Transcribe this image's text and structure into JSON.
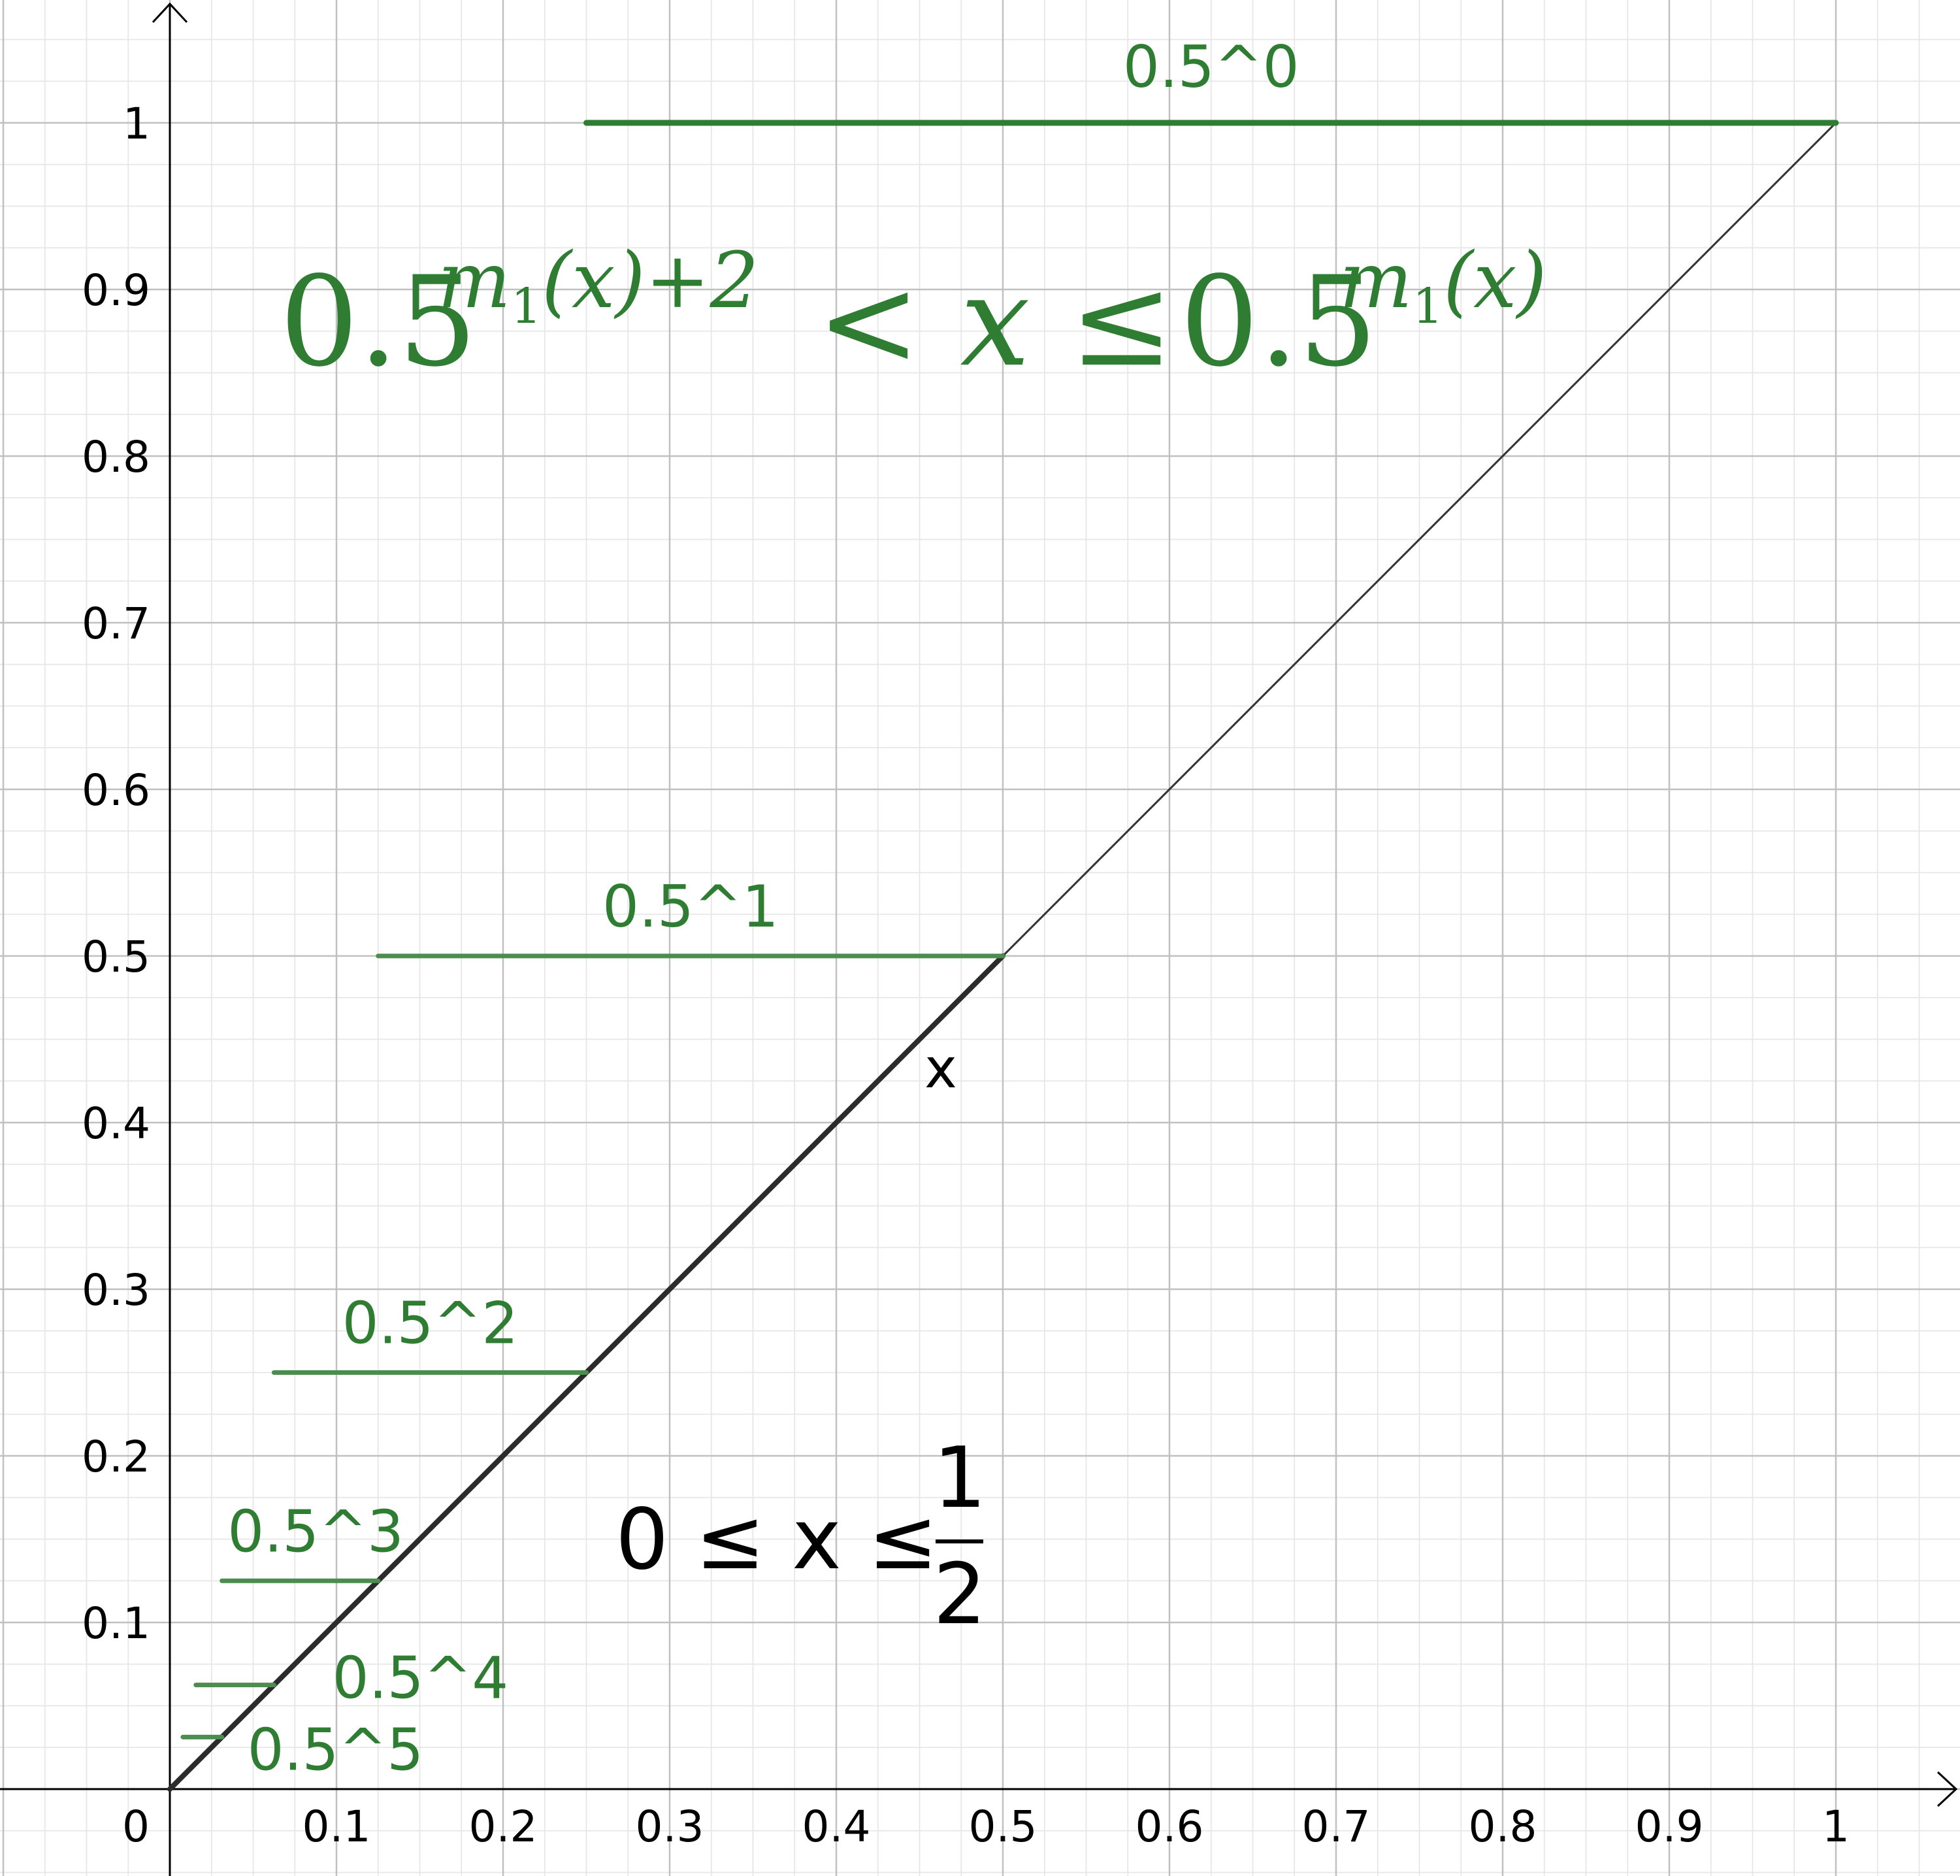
{
  "chart_data": {
    "type": "line",
    "title": "",
    "xlabel": "",
    "ylabel": "",
    "xlim": [
      -0.1,
      1.08
    ],
    "ylim": [
      -0.05,
      1.07
    ],
    "grid": true,
    "minor_grid": true,
    "x_ticks": [
      "0.1",
      "0.2",
      "0.3",
      "0.4",
      "0.5",
      "0.6",
      "0.7",
      "0.8",
      "0.9",
      "1"
    ],
    "y_ticks": [
      "0.1",
      "0.2",
      "0.3",
      "0.4",
      "0.5",
      "0.6",
      "0.7",
      "0.8",
      "0.9",
      "1"
    ],
    "origin_label": "0",
    "series": [
      {
        "points": [
          [
            0,
            0
          ],
          [
            1,
            1
          ]
        ],
        "color": "#333333"
      },
      {
        "name": "x",
        "points": [
          [
            0,
            0
          ],
          [
            0.5,
            0.5
          ]
        ],
        "color": "#2b2b2b"
      }
    ],
    "levels": [
      {
        "label": "0.5^0",
        "y": 1,
        "x_start": 0.25,
        "x_end": 1
      },
      {
        "label": "0.5^1",
        "y": 0.5,
        "x_start": 0.125,
        "x_end": 0.5
      },
      {
        "label": "0.5^2",
        "y": 0.25,
        "x_start": 0.0625,
        "x_end": 0.25
      },
      {
        "label": "0.5^3",
        "y": 0.125,
        "x_start": 0.03125,
        "x_end": 0.125
      },
      {
        "label": "0.5^4",
        "y": 0.0625,
        "x_start": 0.015625,
        "x_end": 0.0625
      },
      {
        "label": "0.5^5",
        "y": 0.03125,
        "x_start": 0.0078125,
        "x_end": 0.03125
      }
    ],
    "annotations": {
      "inequality": {
        "base_left": "0.5",
        "exp_left_m": "m",
        "exp_left_sub": "1",
        "exp_left_rest": "(x)+2",
        "middle": "< x ≤",
        "base_right": "0.5",
        "exp_right_m": "m",
        "exp_right_sub": "1",
        "exp_right_rest": "(x)"
      },
      "domain": {
        "lhs": "0 ≤ x ≤",
        "numerator": "1",
        "denominator": "2"
      }
    },
    "colors": {
      "green": "#2e7d32",
      "green_light": "#4c8c4f",
      "axis": "#000000",
      "grid_major": "#c0c0c0",
      "grid_minor": "#e6e6e6"
    }
  }
}
